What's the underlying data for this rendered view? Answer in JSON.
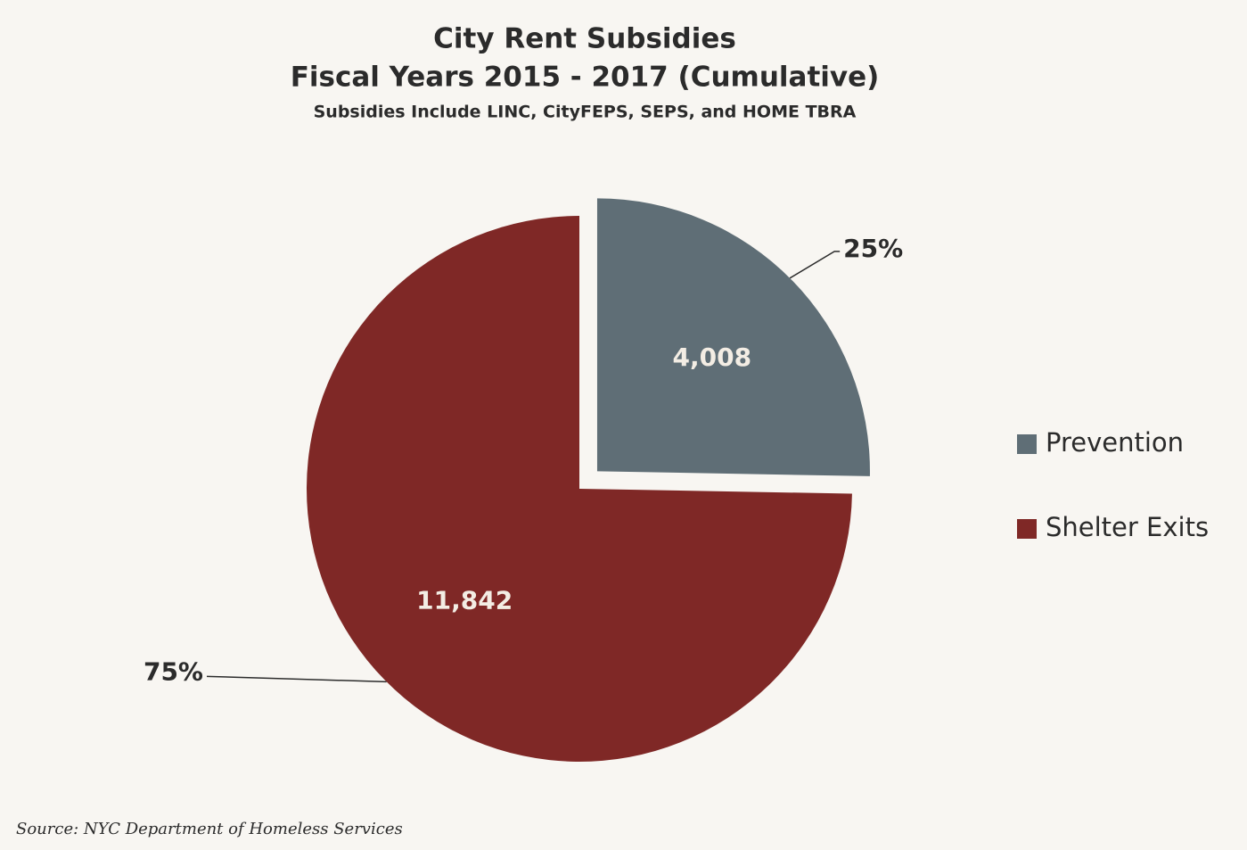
{
  "chart_data": {
    "type": "pie",
    "title": "City Rent Subsidies",
    "subtitle": "Fiscal Years 2015 - 2017 (Cumulative)",
    "note": "Subsidies Include LINC, CityFEPS, SEPS, and HOME TBRA",
    "categories": [
      "Prevention",
      "Shelter Exits"
    ],
    "values": [
      4008,
      11842
    ],
    "value_labels": [
      "4,008",
      "11,842"
    ],
    "percentages": [
      25,
      75
    ],
    "percentage_labels": [
      "25%",
      "75%"
    ],
    "colors": [
      "#5f6e76",
      "#7f2826"
    ],
    "explode": [
      true,
      false
    ],
    "legend": "right",
    "source": "Source:  NYC Department of Homeless Services"
  }
}
